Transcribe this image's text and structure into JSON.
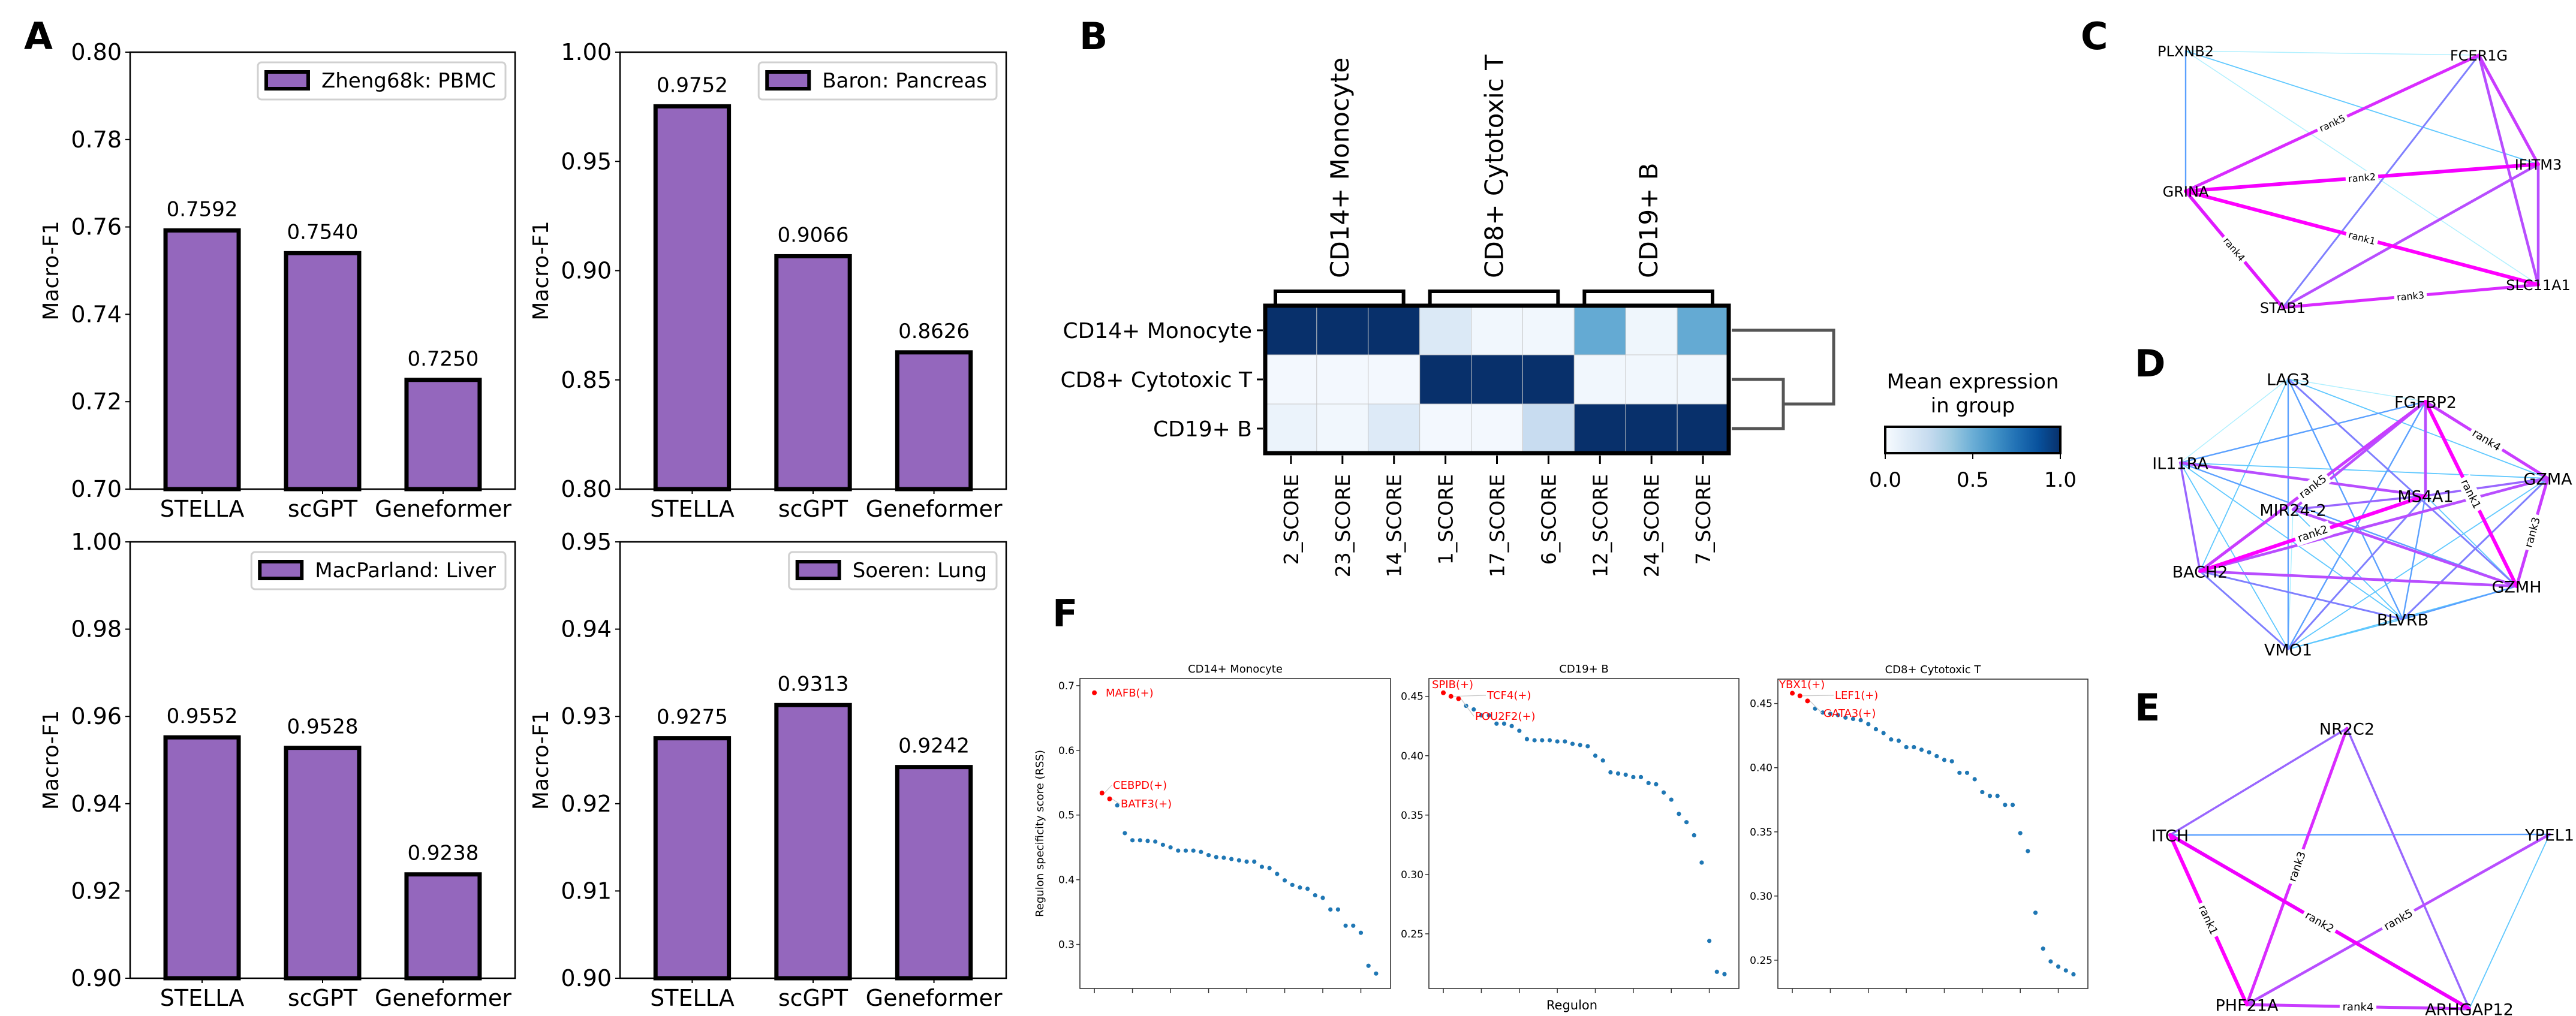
{
  "panel_labels": [
    "A",
    "B",
    "C",
    "D",
    "E",
    "F"
  ],
  "chart_data": [
    {
      "type": "bar",
      "panel": "A",
      "legend": "Zheng68k: PBMC",
      "ylabel": "Macro-F1",
      "xlabel": "",
      "categories": [
        "STELLA",
        "scGPT",
        "Geneformer"
      ],
      "values": [
        0.7592,
        0.754,
        0.725
      ],
      "value_labels": [
        "0.7592",
        "0.7540",
        "0.7250"
      ],
      "ylim": [
        0.7,
        0.8
      ],
      "yticks": [
        "0.70",
        "0.72",
        "0.74",
        "0.76",
        "0.78",
        "0.80"
      ],
      "color": "#9467bd",
      "legend_position": "top-right",
      "grid": false
    },
    {
      "type": "bar",
      "panel": "A",
      "legend": "Baron: Pancreas",
      "ylabel": "Macro-F1",
      "xlabel": "",
      "categories": [
        "STELLA",
        "scGPT",
        "Geneformer"
      ],
      "values": [
        0.9752,
        0.9066,
        0.8626
      ],
      "value_labels": [
        "0.9752",
        "0.9066",
        "0.8626"
      ],
      "ylim": [
        0.8,
        1.0
      ],
      "yticks": [
        "0.80",
        "0.85",
        "0.90",
        "0.95",
        "1.00"
      ],
      "color": "#9467bd",
      "legend_position": "top-right",
      "grid": false
    },
    {
      "type": "bar",
      "panel": "A",
      "legend": "MacParland: Liver",
      "ylabel": "Macro-F1",
      "xlabel": "",
      "categories": [
        "STELLA",
        "scGPT",
        "Geneformer"
      ],
      "values": [
        0.9552,
        0.9528,
        0.9238
      ],
      "value_labels": [
        "0.9552",
        "0.9528",
        "0.9238"
      ],
      "ylim": [
        0.9,
        1.0
      ],
      "yticks": [
        "0.90",
        "0.92",
        "0.94",
        "0.96",
        "0.98",
        "1.00"
      ],
      "color": "#9467bd",
      "legend_position": "top-right",
      "grid": false
    },
    {
      "type": "bar",
      "panel": "A",
      "legend": "Soeren: Lung",
      "ylabel": "Macro-F1",
      "xlabel": "",
      "categories": [
        "STELLA",
        "scGPT",
        "Geneformer"
      ],
      "values": [
        0.9275,
        0.9313,
        0.9242
      ],
      "value_labels": [
        "0.9275",
        "0.9313",
        "0.9242"
      ],
      "ylim": [
        0.9,
        0.95
      ],
      "yticks": [
        "0.90",
        "0.91",
        "0.92",
        "0.93",
        "0.94",
        "0.95"
      ],
      "color": "#9467bd",
      "legend_position": "top-right",
      "grid": false
    },
    {
      "type": "heatmap",
      "panel": "B",
      "rows": [
        "CD14+ Monocyte",
        "CD8+ Cytotoxic T",
        "CD19+ B"
      ],
      "columns": [
        "2_SCORE",
        "23_SCORE",
        "14_SCORE",
        "1_SCORE",
        "17_SCORE",
        "6_SCORE",
        "12_SCORE",
        "24_SCORE",
        "7_SCORE"
      ],
      "groups": [
        {
          "label": "CD14+ Monocyte",
          "columns": 3
        },
        {
          "label": "CD8+ Cytotoxic T",
          "columns": 3
        },
        {
          "label": "CD19+ B",
          "columns": 3
        }
      ],
      "values": [
        [
          1.0,
          1.0,
          1.0,
          0.14,
          0.03,
          0.03,
          0.52,
          0.04,
          0.52
        ],
        [
          0.02,
          0.02,
          0.02,
          1.0,
          1.0,
          1.0,
          0.03,
          0.03,
          0.03
        ],
        [
          0.06,
          0.03,
          0.13,
          0.02,
          0.02,
          0.24,
          1.0,
          1.0,
          1.0
        ]
      ],
      "dendrogram": "(CD14+ Monocyte, (CD8+ Cytotoxic T, CD19+ B))",
      "colorbar": {
        "title_lines": [
          "Mean expression",
          "in group"
        ],
        "ticks": [
          "0.0",
          "0.5",
          "1.0"
        ],
        "range": [
          0,
          1
        ],
        "colormap": "Blues"
      }
    },
    {
      "type": "scatter",
      "panel": "F",
      "title": "CD14+ Monocyte",
      "ylabel": "Regulon specificity score (RSS)",
      "xlabel": "",
      "y": [
        0.689,
        0.534,
        0.525,
        0.515,
        0.472,
        0.461,
        0.461,
        0.46,
        0.459,
        0.454,
        0.45,
        0.445,
        0.445,
        0.445,
        0.443,
        0.438,
        0.435,
        0.434,
        0.432,
        0.43,
        0.428,
        0.428,
        0.42,
        0.418,
        0.409,
        0.399,
        0.392,
        0.388,
        0.386,
        0.376,
        0.372,
        0.354,
        0.354,
        0.329,
        0.329,
        0.318,
        0.267,
        0.255
      ],
      "ylim": [
        0.232,
        0.711
      ],
      "yticks": [
        {
          "value": 0.3,
          "label": "0.3"
        },
        {
          "value": 0.4,
          "label": "0.4"
        },
        {
          "value": 0.5,
          "label": "0.5"
        },
        {
          "value": 0.6,
          "label": "0.6"
        },
        {
          "value": 0.7,
          "label": "0.7"
        }
      ],
      "highlighted": [
        "MAFB(+)",
        "CEBPD(+)",
        "BATF3(+)"
      ],
      "point_color": "#1f77b4",
      "highlight_color": "#ff0000"
    },
    {
      "type": "scatter",
      "panel": "F",
      "title": "CD19+ B",
      "ylabel": "",
      "xlabel": "Regulon",
      "y": [
        0.453,
        0.45,
        0.448,
        0.442,
        0.439,
        0.434,
        0.434,
        0.427,
        0.427,
        0.425,
        0.421,
        0.414,
        0.413,
        0.413,
        0.413,
        0.412,
        0.412,
        0.41,
        0.409,
        0.408,
        0.4,
        0.396,
        0.386,
        0.385,
        0.384,
        0.382,
        0.382,
        0.377,
        0.376,
        0.369,
        0.363,
        0.351,
        0.344,
        0.333,
        0.31,
        0.244,
        0.218,
        0.216
      ],
      "ylim": [
        0.204,
        0.465
      ],
      "yticks": [
        {
          "value": 0.25,
          "label": "0.25"
        },
        {
          "value": 0.3,
          "label": "0.30"
        },
        {
          "value": 0.35,
          "label": "0.35"
        },
        {
          "value": 0.4,
          "label": "0.40"
        },
        {
          "value": 0.45,
          "label": "0.45"
        }
      ],
      "highlighted": [
        "SPIB(+)",
        "TCF4(+)",
        "POU2F2(+)"
      ],
      "point_color": "#1f77b4",
      "highlight_color": "#ff0000"
    },
    {
      "type": "scatter",
      "panel": "F",
      "title": "CD8+ Cytotoxic T",
      "ylabel": "",
      "xlabel": "",
      "y": [
        0.458,
        0.456,
        0.452,
        0.446,
        0.443,
        0.442,
        0.441,
        0.439,
        0.438,
        0.437,
        0.434,
        0.43,
        0.427,
        0.422,
        0.421,
        0.416,
        0.416,
        0.414,
        0.412,
        0.409,
        0.406,
        0.405,
        0.396,
        0.396,
        0.391,
        0.381,
        0.378,
        0.378,
        0.371,
        0.371,
        0.349,
        0.335,
        0.287,
        0.259,
        0.249,
        0.245,
        0.242,
        0.239
      ],
      "ylim": [
        0.228,
        0.469
      ],
      "yticks": [
        {
          "value": 0.25,
          "label": "0.25"
        },
        {
          "value": 0.3,
          "label": "0.30"
        },
        {
          "value": 0.35,
          "label": "0.35"
        },
        {
          "value": 0.4,
          "label": "0.40"
        },
        {
          "value": 0.45,
          "label": "0.45"
        }
      ],
      "highlighted": [
        "YBX1(+)",
        "LEF1(+)",
        "GATA3(+)"
      ],
      "point_color": "#1f77b4",
      "highlight_color": "#ff0000"
    }
  ],
  "networks": [
    {
      "panel": "C",
      "nodes": [
        "PLXNB2",
        "FCER1G",
        "IFITM3",
        "GRINA",
        "STAB1",
        "SLC11A1"
      ],
      "edges": [
        [
          "PLXNB2",
          "FCER1G",
          "#b0f0ff",
          ""
        ],
        [
          "PLXNB2",
          "SLC11A1",
          "#b0f0ff",
          ""
        ],
        [
          "PLXNB2",
          "IFITM3",
          "#5fc8ff",
          ""
        ],
        [
          "PLXNB2",
          "GRINA",
          "#5aa0ff",
          ""
        ],
        [
          "FCER1G",
          "STAB1",
          "#7f7fff",
          ""
        ],
        [
          "IFITM3",
          "STAB1",
          "#b84dff",
          ""
        ],
        [
          "FCER1G",
          "SLC11A1",
          "#b84dff",
          ""
        ],
        [
          "IFITM3",
          "SLC11A1",
          "#b84dff",
          ""
        ],
        [
          "FCER1G",
          "IFITM3",
          "#c93cff",
          ""
        ],
        [
          "GRINA",
          "FCER1G",
          "#d92bff",
          "rank5"
        ],
        [
          "GRINA",
          "STAB1",
          "#e01aff",
          "rank4"
        ],
        [
          "STAB1",
          "SLC11A1",
          "#d92bff",
          "rank3"
        ],
        [
          "GRINA",
          "IFITM3",
          "#f500ff",
          "rank2"
        ],
        [
          "GRINA",
          "SLC11A1",
          "#ff00ff",
          "rank1"
        ]
      ]
    },
    {
      "panel": "D",
      "nodes": [
        "LAG3",
        "FGFBP2",
        "IL11RA",
        "GZMA",
        "MS4A1",
        "MIR24-2",
        "BACH2",
        "GZMH",
        "BLVRB",
        "VMO1"
      ],
      "edges": [
        [
          "LAG3",
          "IL11RA",
          "#b0f0ff",
          ""
        ],
        [
          "LAG3",
          "FGFBP2",
          "#b0f0ff",
          ""
        ],
        [
          "MIR24-2",
          "VMO1",
          "#b0f0ff",
          ""
        ],
        [
          "LAG3",
          "GZMA",
          "#5fc8ff",
          ""
        ],
        [
          "LAG3",
          "BACH2",
          "#5fc8ff",
          ""
        ],
        [
          "IL11RA",
          "GZMA",
          "#5fc8ff",
          ""
        ],
        [
          "IL11RA",
          "BLVRB",
          "#5fc8ff",
          ""
        ],
        [
          "IL11RA",
          "VMO1",
          "#5fc8ff",
          ""
        ],
        [
          "MIR24-2",
          "BLVRB",
          "#5fc8ff",
          ""
        ],
        [
          "GZMA",
          "VMO1",
          "#5fc8ff",
          ""
        ],
        [
          "VMO1",
          "BLVRB",
          "#5fc8ff",
          ""
        ],
        [
          "MS4A1",
          "GZMH",
          "#5fc8ff",
          ""
        ],
        [
          "GZMH",
          "VMO1",
          "#5fc8ff",
          ""
        ],
        [
          "IL11RA",
          "GZMH",
          "#5aa0ff",
          ""
        ],
        [
          "LAG3",
          "VMO1",
          "#5aa0ff",
          ""
        ],
        [
          "LAG3",
          "BLVRB",
          "#5aa0ff",
          ""
        ],
        [
          "IL11RA",
          "FGFBP2",
          "#5aa0ff",
          ""
        ],
        [
          "FGFBP2",
          "VMO1",
          "#5aa0ff",
          ""
        ],
        [
          "MS4A1",
          "BLVRB",
          "#5aa0ff",
          ""
        ],
        [
          "GZMH",
          "BLVRB",
          "#5aa0ff",
          ""
        ],
        [
          "LAG3",
          "GZMH",
          "#7f7fff",
          ""
        ],
        [
          "BACH2",
          "BLVRB",
          "#7f7fff",
          ""
        ],
        [
          "BACH2",
          "VMO1",
          "#7f7fff",
          ""
        ],
        [
          "MS4A1",
          "VMO1",
          "#7f7fff",
          ""
        ],
        [
          "GZMA",
          "BLVRB",
          "#7f7fff",
          ""
        ],
        [
          "MIR24-2",
          "MS4A1",
          "#9966ff",
          ""
        ],
        [
          "MS4A1",
          "GZMA",
          "#9966ff",
          ""
        ],
        [
          "IL11RA",
          "BACH2",
          "#9966ff",
          ""
        ],
        [
          "MIR24-2",
          "FGFBP2",
          "#b84dff",
          ""
        ],
        [
          "IL11RA",
          "MS4A1",
          "#b84dff",
          ""
        ],
        [
          "MIR24-2",
          "GZMH",
          "#b84dff",
          ""
        ],
        [
          "BACH2",
          "GZMA",
          "#b84dff",
          ""
        ],
        [
          "BACH2",
          "GZMH",
          "#b84dff",
          ""
        ],
        [
          "FGFBP2",
          "MS4A1",
          "#b84dff",
          ""
        ],
        [
          "BACH2",
          "FGFBP2",
          "#c93cff",
          "rank5"
        ],
        [
          "FGFBP2",
          "GZMA",
          "#c93cff",
          "rank4"
        ],
        [
          "GZMA",
          "GZMH",
          "#c93cff",
          "rank3"
        ],
        [
          "BACH2",
          "MS4A1",
          "#ff00ff",
          "rank2"
        ],
        [
          "FGFBP2",
          "GZMH",
          "#ff00ff",
          "rank1"
        ]
      ]
    },
    {
      "panel": "E",
      "nodes": [
        "NR2C2",
        "ITCH",
        "YPEL1",
        "PHF21A",
        "ARHGAP12"
      ],
      "edges": [
        [
          "YPEL1",
          "ARHGAP12",
          "#5fc8ff",
          ""
        ],
        [
          "ITCH",
          "YPEL1",
          "#5aa0ff",
          ""
        ],
        [
          "NR2C2",
          "ITCH",
          "#9966ff",
          ""
        ],
        [
          "NR2C2",
          "ARHGAP12",
          "#9966ff",
          ""
        ],
        [
          "YPEL1",
          "PHF21A",
          "#b84dff",
          "rank5"
        ],
        [
          "PHF21A",
          "ARHGAP12",
          "#c93cff",
          "rank4"
        ],
        [
          "NR2C2",
          "PHF21A",
          "#d92bff",
          "rank3"
        ],
        [
          "ITCH",
          "ARHGAP12",
          "#f000ff",
          "rank2"
        ],
        [
          "ITCH",
          "PHF21A",
          "#ff00ff",
          "rank1"
        ]
      ]
    }
  ]
}
